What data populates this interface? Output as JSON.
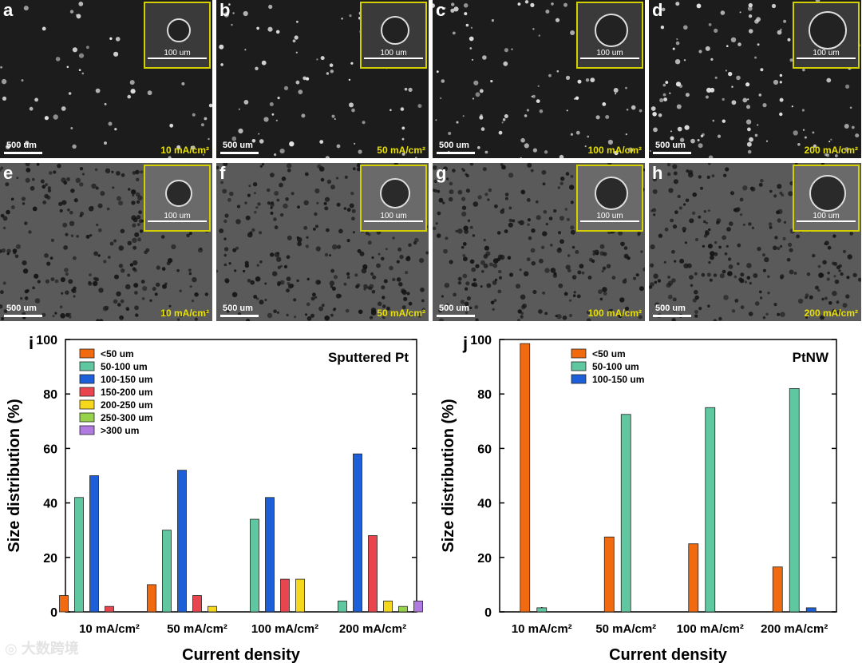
{
  "figure": {
    "row_top": {
      "panels": [
        {
          "letter": "a",
          "current": "10 mA/cm²",
          "scale": "500 um",
          "inset_scale": "100 um"
        },
        {
          "letter": "b",
          "current": "50 mA/cm²",
          "scale": "500 um",
          "inset_scale": "100 um"
        },
        {
          "letter": "c",
          "current": "100 mA/cm²",
          "scale": "500 um",
          "inset_scale": "100 um"
        },
        {
          "letter": "d",
          "current": "200 mA/cm²",
          "scale": "500 um",
          "inset_scale": "100 um"
        }
      ]
    },
    "row_bottom": {
      "panels": [
        {
          "letter": "e",
          "current": "10 mA/cm²",
          "scale": "500 um",
          "inset_scale": "100 um"
        },
        {
          "letter": "f",
          "current": "50 mA/cm²",
          "scale": "500 um",
          "inset_scale": "100 um"
        },
        {
          "letter": "g",
          "current": "100 mA/cm²",
          "scale": "500 um",
          "inset_scale": "100 um"
        },
        {
          "letter": "h",
          "current": "200 mA/cm²",
          "scale": "500 um",
          "inset_scale": "100 um"
        }
      ]
    },
    "watermark": "大数跨境"
  },
  "colors": {
    "lt50": "#f26a0f",
    "c50_100": "#5fc8a0",
    "c100_150": "#1c5fd8",
    "c150_200": "#e8454e",
    "c200_250": "#f5d81c",
    "c250_300": "#96d24a",
    "gt300": "#b07ae0"
  },
  "chart_data": [
    {
      "panel": "i",
      "type": "bar",
      "title": "Sputtered Pt",
      "xlabel": "Current density",
      "ylabel": "Size distribution (%)",
      "ylim": [
        0,
        100
      ],
      "yticks": [
        0,
        20,
        40,
        60,
        80,
        100
      ],
      "categories": [
        "10 mA/cm²",
        "50 mA/cm²",
        "100 mA/cm²",
        "200 mA/cm²"
      ],
      "legend_position": "top-left",
      "series": [
        {
          "name": "<50 um",
          "color_key": "lt50",
          "values": [
            6,
            10,
            0,
            0
          ]
        },
        {
          "name": "50-100 um",
          "color_key": "c50_100",
          "values": [
            42,
            30,
            34,
            4
          ]
        },
        {
          "name": "100-150 um",
          "color_key": "c100_150",
          "values": [
            50,
            52,
            42,
            58
          ]
        },
        {
          "name": "150-200 um",
          "color_key": "c150_200",
          "values": [
            2,
            6,
            12,
            28
          ]
        },
        {
          "name": "200-250 um",
          "color_key": "c200_250",
          "values": [
            0,
            2,
            12,
            4
          ]
        },
        {
          "name": "250-300 um",
          "color_key": "c250_300",
          "values": [
            0,
            0,
            0,
            2
          ]
        },
        {
          "name": ">300 um",
          "color_key": "gt300",
          "values": [
            0,
            0,
            0,
            4
          ]
        }
      ]
    },
    {
      "panel": "j",
      "type": "bar",
      "title": "PtNW",
      "xlabel": "Current density",
      "ylabel": "Size distribution (%)",
      "ylim": [
        0,
        100
      ],
      "yticks": [
        0,
        20,
        40,
        60,
        80,
        100
      ],
      "categories": [
        "10 mA/cm²",
        "50 mA/cm²",
        "100 mA/cm²",
        "200 mA/cm²"
      ],
      "legend_position": "top-left",
      "series": [
        {
          "name": "<50 um",
          "color_key": "lt50",
          "values": [
            98.5,
            27.5,
            25,
            16.5
          ]
        },
        {
          "name": "50-100 um",
          "color_key": "c50_100",
          "values": [
            1.5,
            72.5,
            75,
            82
          ]
        },
        {
          "name": "100-150 um",
          "color_key": "c100_150",
          "values": [
            0,
            0,
            0,
            1.5
          ]
        }
      ]
    }
  ]
}
